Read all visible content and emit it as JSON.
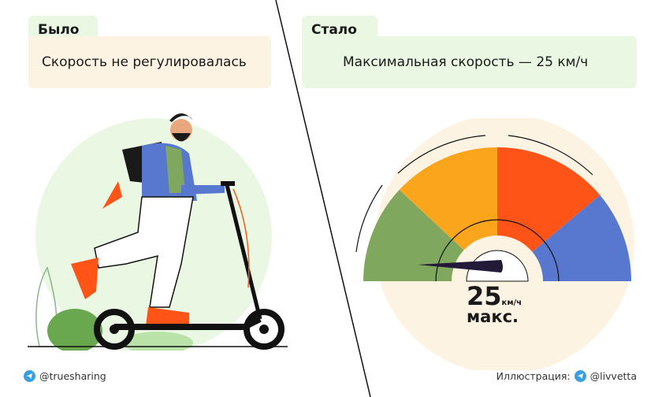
{
  "before": {
    "tab": "Было",
    "text": "Скорость не регулировалась"
  },
  "after": {
    "tab": "Стало",
    "text": "Максимальная скорость — 25 км/ч"
  },
  "gauge": {
    "value": "25",
    "unit": "км/ч",
    "label": "макс.",
    "colors": [
      "#7fa85e",
      "#fba51d",
      "#ff5417",
      "#5878cf"
    ]
  },
  "footer": {
    "left_handle": "@truesharing",
    "credit_label": "Иллюстрация:",
    "right_handle": "@livvetta",
    "icon": "telegram-icon"
  },
  "colors": {
    "cream": "#fdf3e3",
    "light_green": "#eaf8e3",
    "text": "#1a1a1a"
  }
}
